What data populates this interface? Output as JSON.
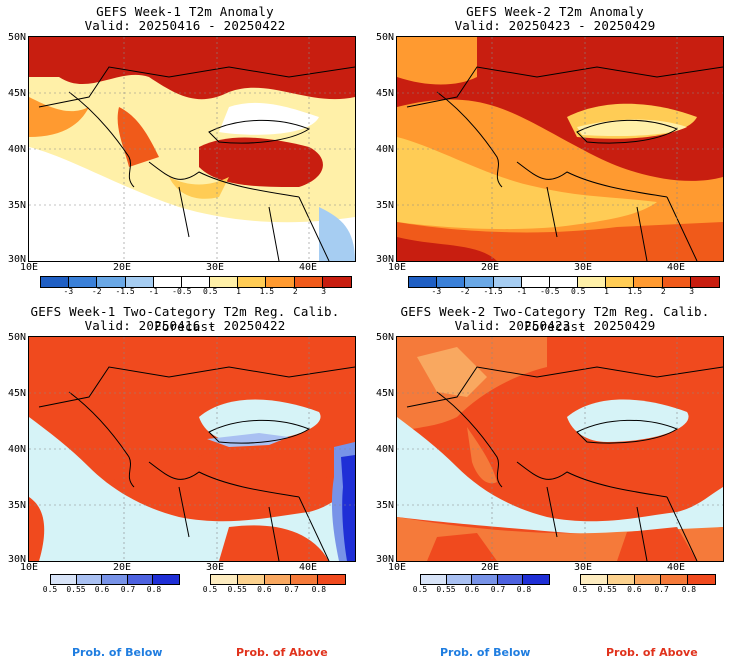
{
  "panels": [
    {
      "title": "GEFS Week-1 T2m Anomaly",
      "valid": "Valid: 20250416 - 20250422"
    },
    {
      "title": "GEFS Week-2 T2m Anomaly",
      "valid": "Valid: 20250423 - 20250429"
    },
    {
      "title": "GEFS Week-1 Two-Category T2m Reg. Calib. Forecast",
      "valid": "Valid: 20250416 - 20250422"
    },
    {
      "title": "GEFS Week-2 Two-Category T2m Reg. Calib. Forecast",
      "valid": "Valid: 20250423 - 20250429"
    }
  ],
  "axes": {
    "lat_labels": [
      "50N",
      "45N",
      "40N",
      "35N",
      "30N"
    ],
    "lon_labels": [
      "10E",
      "20E",
      "30E",
      "40E"
    ]
  },
  "anomaly_scale": {
    "ticks": [
      "-3",
      "-2",
      "-1.5",
      "-1",
      "-0.5",
      "0.5",
      "1",
      "1.5",
      "2",
      "3"
    ],
    "colors": [
      "#1f5fc4",
      "#3a80d8",
      "#6aa8e6",
      "#a6cdf2",
      "#ffffff",
      "#ffffff",
      "#fff0a8",
      "#ffcc55",
      "#ff9a30",
      "#f05a1a",
      "#c81e10"
    ]
  },
  "prob_below_scale": {
    "ticks": [
      "0.5",
      "0.55",
      "0.6",
      "0.7",
      "0.8"
    ],
    "colors": [
      "#d8e4f8",
      "#a9c0f2",
      "#7893e8",
      "#4d62e0",
      "#1f2fd6"
    ]
  },
  "prob_above_scale": {
    "ticks": [
      "0.5",
      "0.55",
      "0.6",
      "0.7",
      "0.8"
    ],
    "colors": [
      "#fdecc0",
      "#fcd28e",
      "#f9a860",
      "#f57a3a",
      "#f04a1e"
    ]
  },
  "legends": {
    "below": "Prob. of Below",
    "above": "Prob. of Above",
    "below_color": "#1f7de0",
    "above_color": "#e0321c"
  },
  "map_colors": {
    "sea_prob": "#d6f3f7",
    "above_prob": "#f04a1e",
    "above_prob_light": "#f57a3a",
    "anom_hot": "#c81e10",
    "anom_warm": "#f05a1a",
    "anom_mid": "#ff9a30",
    "anom_light": "#ffcc55",
    "anom_pale": "#fff0a8"
  }
}
